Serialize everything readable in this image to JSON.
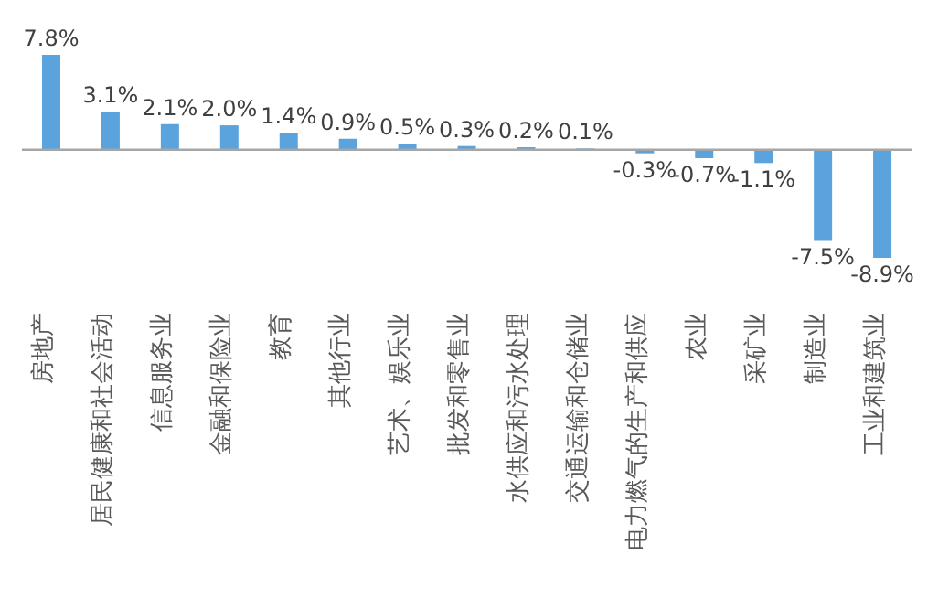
{
  "chart_data": {
    "type": "bar",
    "categories": [
      "房地产",
      "居民健康和社会活动",
      "信息服务业",
      "金融和保险业",
      "教育",
      "其他行业",
      "艺术、娱乐业",
      "批发和零售业",
      "水供应和污水处理",
      "交通运输和仓储业",
      "电力燃气的生产和供应",
      "农业",
      "采矿业",
      "制造业",
      "工业和建筑业"
    ],
    "values": [
      7.8,
      3.1,
      2.1,
      2.0,
      1.4,
      0.9,
      0.5,
      0.3,
      0.2,
      0.1,
      -0.3,
      -0.7,
      -1.1,
      -7.5,
      -8.9
    ],
    "value_labels": [
      "7.8%",
      "3.1%",
      "2.1%",
      "2.0%",
      "1.4%",
      "0.9%",
      "0.5%",
      "0.3%",
      "0.2%",
      "0.1%",
      "-0.3%",
      "-0.7%",
      "-1.1%",
      "-7.5%",
      "-8.9%"
    ],
    "color": "#5ba3dc",
    "grid": false,
    "legend": false
  }
}
